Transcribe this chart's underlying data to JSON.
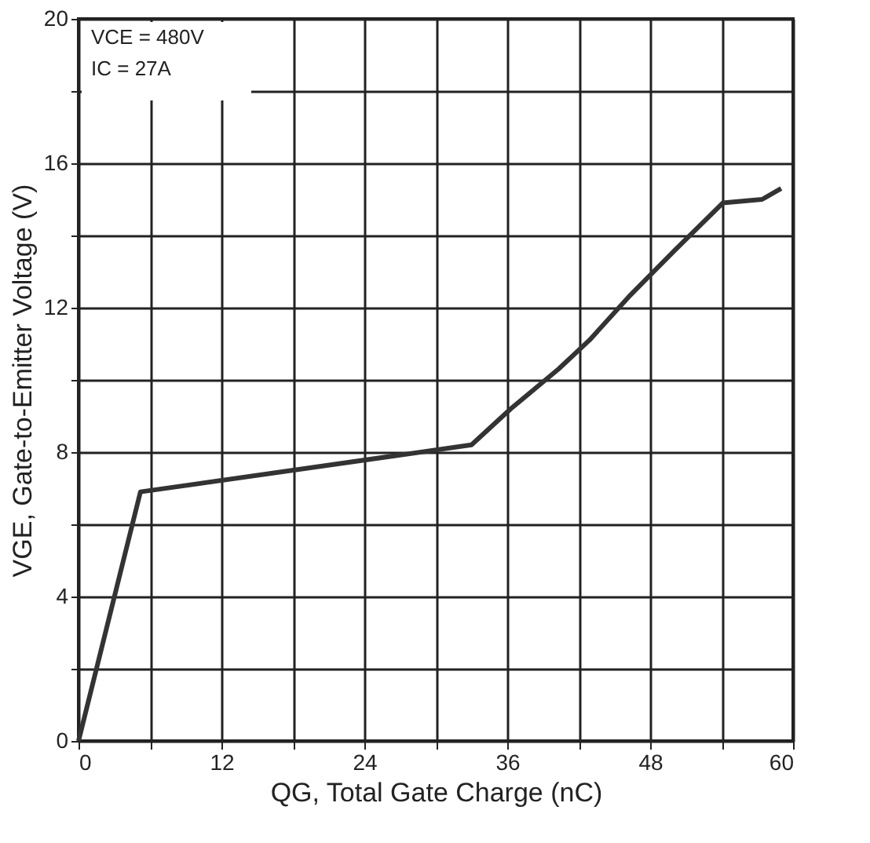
{
  "chart_data": {
    "type": "line",
    "xlabel": "QG, Total Gate Charge (nC)",
    "ylabel": "VGE, Gate-to-Emitter Voltage (V)",
    "x": [
      0,
      5.2,
      33,
      36.3,
      40.3,
      42.9,
      46.2,
      50.1,
      54.1,
      57.4,
      59
    ],
    "series": [
      {
        "color": "#333333",
        "values": [
          0,
          6.9,
          8.2,
          9.2,
          10.3,
          11.1,
          12.3,
          13.6,
          14.9,
          15.0,
          15.3
        ]
      }
    ],
    "xlim": [
      0,
      60
    ],
    "ylim": [
      0,
      20
    ],
    "xticks": [
      0,
      {
        "value": 6,
        "label": null
      },
      12,
      {
        "value": 18,
        "label": null
      },
      24,
      {
        "value": 30,
        "label": null
      },
      36,
      {
        "value": 42,
        "label": null
      },
      48,
      {
        "value": 54,
        "label": null
      },
      60
    ],
    "yticks": [
      0,
      {
        "value": 2,
        "label": null
      },
      4,
      {
        "value": 6,
        "label": null
      },
      8,
      {
        "value": 10,
        "label": null
      },
      12,
      {
        "value": 14,
        "label": null
      },
      16,
      {
        "value": 18,
        "label": null
      },
      20
    ],
    "annotations": [
      "VCE = 480V",
      "IC = 27A"
    ],
    "grid": true,
    "marker": "none",
    "line_style": "solid"
  }
}
